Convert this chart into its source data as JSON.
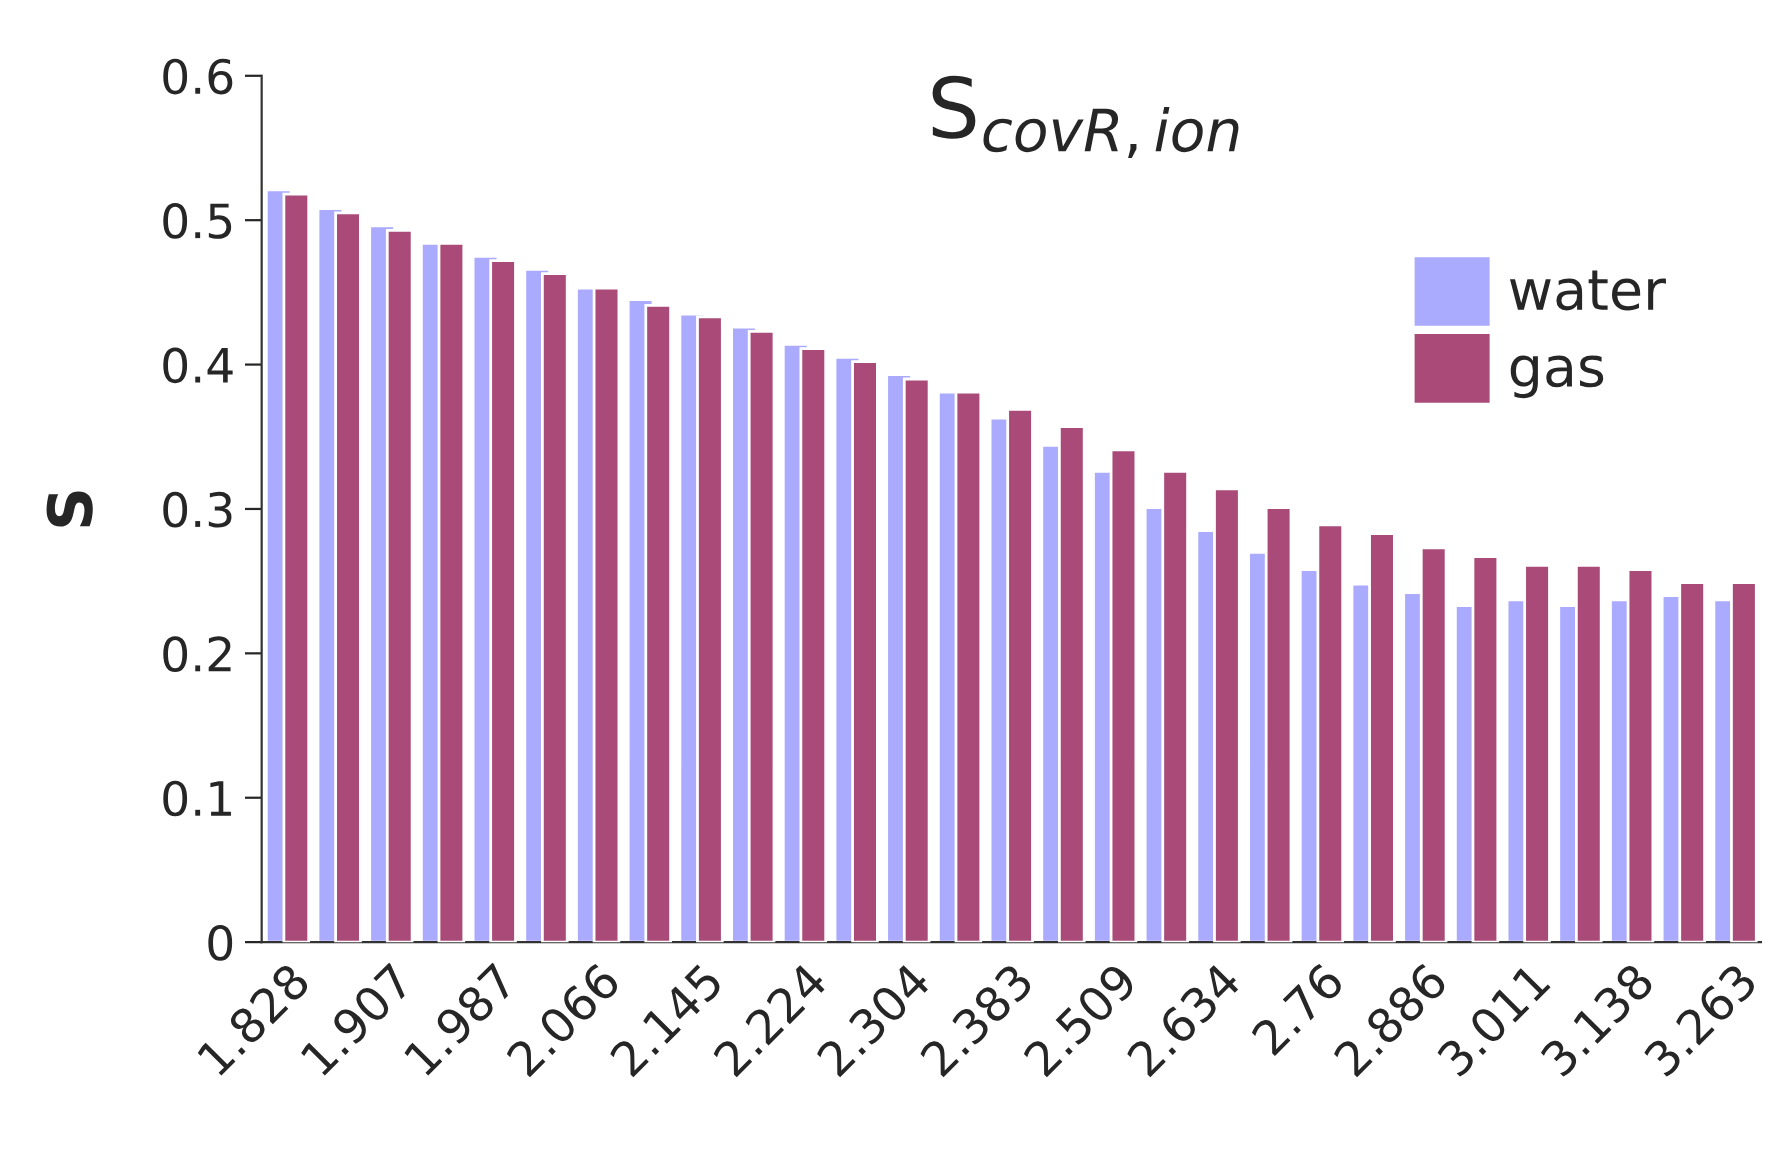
{
  "chart_data": {
    "type": "bar",
    "title": "S$_{covR,ion}$",
    "ylabel": "S",
    "categories": [
      "1.828",
      null,
      "1.907",
      null,
      "1.987",
      null,
      "2.066",
      null,
      "2.145",
      null,
      "2.224",
      null,
      "2.304",
      null,
      "2.383",
      null,
      "2.509",
      null,
      "2.634",
      null,
      "2.76",
      null,
      "2.886",
      null,
      "3.011",
      null,
      "3.138",
      null,
      "3.263"
    ],
    "series": [
      {
        "name": "water",
        "color": "#aaaaff",
        "values": [
          0.521,
          0.508,
          0.496,
          0.484,
          0.475,
          0.466,
          0.453,
          0.445,
          0.435,
          0.426,
          0.414,
          0.405,
          0.393,
          0.381,
          0.363,
          0.344,
          0.326,
          0.301,
          0.285,
          0.27,
          0.258,
          0.248,
          0.242,
          0.233,
          0.237,
          0.233,
          0.237,
          0.24,
          0.237
        ]
      },
      {
        "name": "gas",
        "color": "#aa4a78",
        "values": [
          0.518,
          0.505,
          0.493,
          0.484,
          0.472,
          0.463,
          0.453,
          0.441,
          0.433,
          0.423,
          0.411,
          0.402,
          0.39,
          0.381,
          0.369,
          0.357,
          0.341,
          0.326,
          0.314,
          0.301,
          0.289,
          0.283,
          0.273,
          0.267,
          0.261,
          0.261,
          0.258,
          0.249,
          0.249
        ]
      }
    ],
    "ylim": [
      0,
      0.6
    ],
    "yticks": [
      0,
      0.1,
      0.2,
      0.3,
      0.4,
      0.5,
      0.6
    ],
    "grid": false,
    "legend": "top right"
  }
}
